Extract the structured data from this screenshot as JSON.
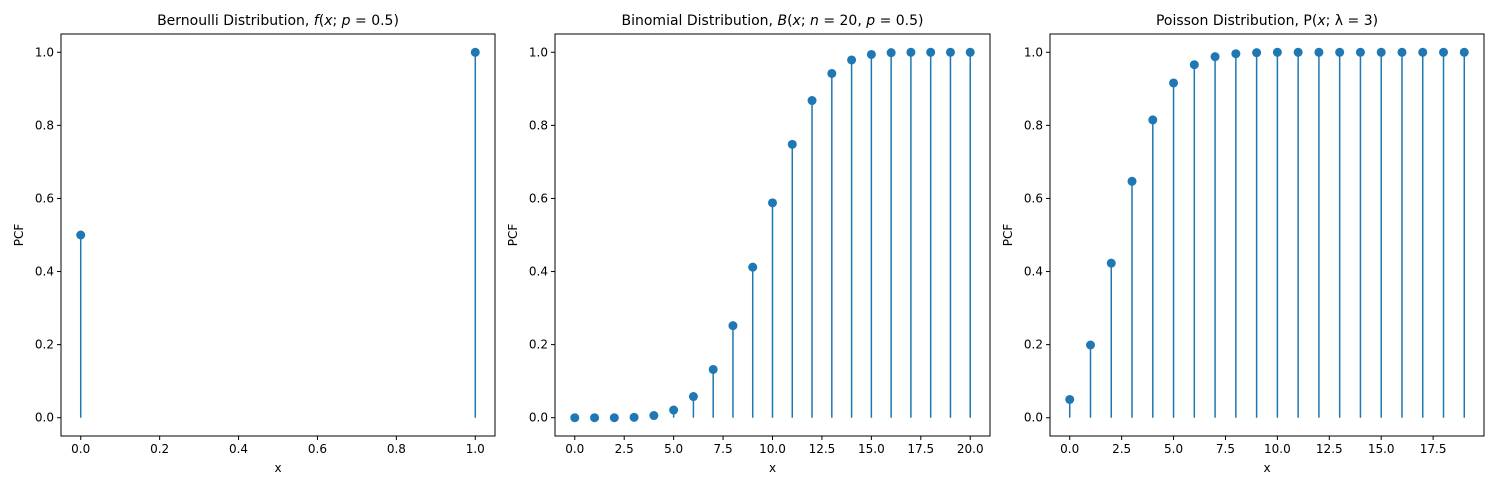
{
  "chart_data": [
    {
      "type": "stem",
      "title": "Bernoulli Distribution, f(x; p = 0.5)",
      "xlabel": "x",
      "ylabel": "PCF",
      "xlim": [
        -0.05,
        1.05
      ],
      "ylim": [
        -0.05,
        1.05
      ],
      "xticks": [
        "0.0",
        "0.2",
        "0.4",
        "0.6",
        "0.8",
        "1.0"
      ],
      "yticks": [
        "0.0",
        "0.2",
        "0.4",
        "0.6",
        "0.8",
        "1.0"
      ],
      "x": [
        0,
        1
      ],
      "values": [
        0.5,
        1.0
      ],
      "color": "#1f77b4"
    },
    {
      "type": "stem",
      "title": "Binomial Distribution, B(x; n = 20, p = 0.5)",
      "xlabel": "x",
      "ylabel": "PCF",
      "xlim": [
        -1,
        21
      ],
      "ylim": [
        -0.05,
        1.05
      ],
      "xticks": [
        "0.0",
        "2.5",
        "5.0",
        "7.5",
        "10.0",
        "12.5",
        "15.0",
        "17.5",
        "20.0"
      ],
      "yticks": [
        "0.0",
        "0.2",
        "0.4",
        "0.6",
        "0.8",
        "1.0"
      ],
      "x": [
        0,
        1,
        2,
        3,
        4,
        5,
        6,
        7,
        8,
        9,
        10,
        11,
        12,
        13,
        14,
        15,
        16,
        17,
        18,
        19,
        20
      ],
      "values": [
        0.0,
        0.0,
        0.0,
        0.001,
        0.006,
        0.021,
        0.058,
        0.132,
        0.252,
        0.412,
        0.588,
        0.748,
        0.868,
        0.942,
        0.979,
        0.994,
        0.999,
        1.0,
        1.0,
        1.0,
        1.0
      ],
      "color": "#1f77b4"
    },
    {
      "type": "stem",
      "title": "Poisson Distribution, P(x; λ = 3)",
      "xlabel": "x",
      "ylabel": "PCF",
      "xlim": [
        -0.95,
        19.95
      ],
      "ylim": [
        -0.05,
        1.05
      ],
      "xticks": [
        "0.0",
        "2.5",
        "5.0",
        "7.5",
        "10.0",
        "12.5",
        "15.0",
        "17.5"
      ],
      "yticks": [
        "0.0",
        "0.2",
        "0.4",
        "0.6",
        "0.8",
        "1.0"
      ],
      "x": [
        0,
        1,
        2,
        3,
        4,
        5,
        6,
        7,
        8,
        9,
        10,
        11,
        12,
        13,
        14,
        15,
        16,
        17,
        18,
        19
      ],
      "values": [
        0.05,
        0.199,
        0.423,
        0.647,
        0.815,
        0.916,
        0.966,
        0.988,
        0.996,
        0.999,
        1.0,
        1.0,
        1.0,
        1.0,
        1.0,
        1.0,
        1.0,
        1.0,
        1.0,
        1.0
      ],
      "color": "#1f77b4"
    }
  ]
}
